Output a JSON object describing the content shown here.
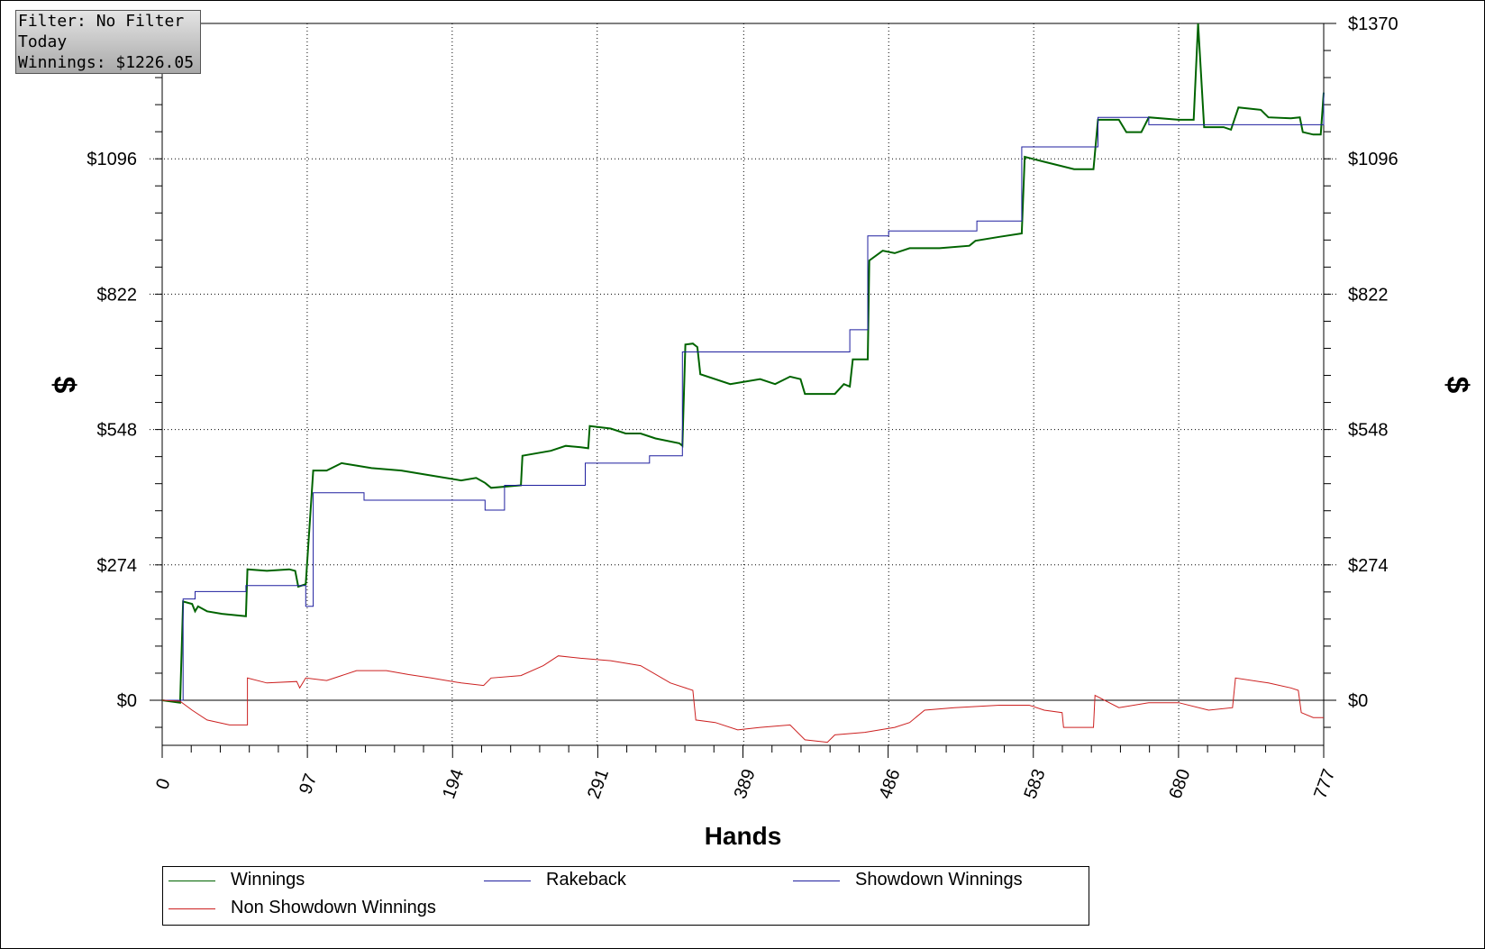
{
  "info_box": {
    "filter": "Filter: No Filter",
    "period": "Today",
    "winnings": "Winnings: $1226.05"
  },
  "colors": {
    "winnings": "#006400",
    "rakeback": "#0000cd",
    "showdown": "#0000cd",
    "non_showdown": "#cc2020",
    "grid": "#000000",
    "zero_line": "#000000"
  },
  "legend": [
    {
      "label": "Winnings",
      "color": "#006400"
    },
    {
      "label": "Rakeback",
      "color": "#1f1f9f"
    },
    {
      "label": "Showdown Winnings",
      "color": "#1f1f9f"
    },
    {
      "label": "Non Showdown Winnings",
      "color": "#cc2020"
    }
  ],
  "chart_data": {
    "type": "line",
    "title": "",
    "xlabel": "Hands",
    "ylabel_left": "$",
    "ylabel_right": "$",
    "xlim": [
      0,
      777
    ],
    "ylim": [
      -90,
      1370
    ],
    "x_ticks": [
      0,
      97,
      194,
      291,
      389,
      486,
      583,
      680,
      777
    ],
    "x_tick_labels": [
      "0",
      "97",
      "194",
      "291",
      "389",
      "486",
      "583",
      "680",
      "777"
    ],
    "y_ticks": [
      0,
      274,
      548,
      822,
      1096,
      1370
    ],
    "y_tick_labels_left": [
      "$0",
      "$274",
      "$548",
      "$822",
      "$1096",
      ""
    ],
    "y_tick_labels_right": [
      "$0",
      "$274",
      "$548",
      "$822",
      "$1096",
      "$1370"
    ],
    "grid": true,
    "legend_position": "bottom",
    "series": [
      {
        "name": "Winnings",
        "color": "#006400",
        "points": [
          [
            0,
            0
          ],
          [
            12,
            -5
          ],
          [
            14,
            200
          ],
          [
            20,
            195
          ],
          [
            22,
            180
          ],
          [
            24,
            190
          ],
          [
            30,
            180
          ],
          [
            40,
            175
          ],
          [
            56,
            170
          ],
          [
            57,
            265
          ],
          [
            70,
            262
          ],
          [
            85,
            265
          ],
          [
            89,
            262
          ],
          [
            91,
            230
          ],
          [
            96,
            235
          ],
          [
            101,
            465
          ],
          [
            110,
            465
          ],
          [
            120,
            480
          ],
          [
            130,
            475
          ],
          [
            140,
            470
          ],
          [
            160,
            465
          ],
          [
            180,
            455
          ],
          [
            200,
            445
          ],
          [
            210,
            450
          ],
          [
            216,
            440
          ],
          [
            220,
            430
          ],
          [
            240,
            435
          ],
          [
            241,
            495
          ],
          [
            260,
            505
          ],
          [
            270,
            515
          ],
          [
            280,
            512
          ],
          [
            285,
            510
          ],
          [
            286,
            555
          ],
          [
            300,
            550
          ],
          [
            310,
            540
          ],
          [
            320,
            540
          ],
          [
            330,
            530
          ],
          [
            346,
            520
          ],
          [
            348,
            515
          ],
          [
            350,
            720
          ],
          [
            355,
            722
          ],
          [
            358,
            715
          ],
          [
            360,
            660
          ],
          [
            380,
            640
          ],
          [
            400,
            650
          ],
          [
            410,
            640
          ],
          [
            420,
            655
          ],
          [
            427,
            650
          ],
          [
            430,
            620
          ],
          [
            450,
            620
          ],
          [
            456,
            640
          ],
          [
            460,
            635
          ],
          [
            462,
            690
          ],
          [
            472,
            690
          ],
          [
            473,
            890
          ],
          [
            482,
            910
          ],
          [
            490,
            905
          ],
          [
            500,
            915
          ],
          [
            520,
            915
          ],
          [
            540,
            920
          ],
          [
            544,
            930
          ],
          [
            560,
            938
          ],
          [
            575,
            945
          ],
          [
            577,
            1100
          ],
          [
            590,
            1090
          ],
          [
            610,
            1075
          ],
          [
            623,
            1075
          ],
          [
            626,
            1175
          ],
          [
            640,
            1175
          ],
          [
            645,
            1150
          ],
          [
            655,
            1150
          ],
          [
            660,
            1180
          ],
          [
            680,
            1175
          ],
          [
            690,
            1175
          ],
          [
            693,
            1380
          ],
          [
            697,
            1160
          ],
          [
            710,
            1160
          ],
          [
            715,
            1155
          ],
          [
            720,
            1200
          ],
          [
            735,
            1195
          ],
          [
            740,
            1180
          ],
          [
            755,
            1178
          ],
          [
            761,
            1180
          ],
          [
            763,
            1150
          ],
          [
            770,
            1145
          ],
          [
            775,
            1145
          ],
          [
            777,
            1230
          ]
        ]
      },
      {
        "name": "Rakeback",
        "color": "#1f1f9f",
        "points": [
          [
            0,
            0
          ],
          [
            14,
            0
          ],
          [
            14,
            205
          ],
          [
            22,
            205
          ],
          [
            22,
            220
          ],
          [
            56,
            220
          ],
          [
            56,
            232
          ],
          [
            96,
            232
          ],
          [
            96,
            190
          ],
          [
            101,
            190
          ],
          [
            101,
            420
          ],
          [
            135,
            420
          ],
          [
            135,
            405
          ],
          [
            216,
            405
          ],
          [
            216,
            385
          ],
          [
            229,
            385
          ],
          [
            229,
            435
          ],
          [
            283,
            435
          ],
          [
            283,
            480
          ],
          [
            326,
            480
          ],
          [
            326,
            495
          ],
          [
            348,
            495
          ],
          [
            348,
            705
          ],
          [
            460,
            705
          ],
          [
            460,
            750
          ],
          [
            472,
            750
          ],
          [
            472,
            940
          ],
          [
            486,
            940
          ],
          [
            486,
            950
          ],
          [
            545,
            950
          ],
          [
            545,
            970
          ],
          [
            575,
            970
          ],
          [
            575,
            1120
          ],
          [
            626,
            1120
          ],
          [
            626,
            1180
          ],
          [
            660,
            1180
          ],
          [
            660,
            1165
          ],
          [
            690,
            1165
          ],
          [
            690,
            1165
          ],
          [
            696,
            1165
          ],
          [
            696,
            1165
          ],
          [
            777,
            1165
          ],
          [
            777,
            1230
          ]
        ]
      },
      {
        "name": "Non Showdown Winnings",
        "color": "#cc2020",
        "points": [
          [
            0,
            0
          ],
          [
            12,
            -2
          ],
          [
            20,
            -20
          ],
          [
            30,
            -40
          ],
          [
            45,
            -50
          ],
          [
            57,
            -50
          ],
          [
            57,
            45
          ],
          [
            70,
            35
          ],
          [
            90,
            38
          ],
          [
            92,
            25
          ],
          [
            96,
            45
          ],
          [
            110,
            40
          ],
          [
            120,
            50
          ],
          [
            130,
            60
          ],
          [
            150,
            60
          ],
          [
            165,
            52
          ],
          [
            180,
            45
          ],
          [
            200,
            35
          ],
          [
            215,
            30
          ],
          [
            220,
            45
          ],
          [
            240,
            50
          ],
          [
            255,
            70
          ],
          [
            265,
            90
          ],
          [
            280,
            85
          ],
          [
            300,
            80
          ],
          [
            320,
            70
          ],
          [
            340,
            35
          ],
          [
            355,
            20
          ],
          [
            357,
            -40
          ],
          [
            370,
            -45
          ],
          [
            385,
            -60
          ],
          [
            400,
            -55
          ],
          [
            420,
            -50
          ],
          [
            430,
            -80
          ],
          [
            445,
            -85
          ],
          [
            450,
            -70
          ],
          [
            470,
            -65
          ],
          [
            490,
            -55
          ],
          [
            500,
            -45
          ],
          [
            510,
            -20
          ],
          [
            530,
            -15
          ],
          [
            560,
            -10
          ],
          [
            580,
            -10
          ],
          [
            590,
            -20
          ],
          [
            602,
            -25
          ],
          [
            603,
            -55
          ],
          [
            623,
            -55
          ],
          [
            624,
            10
          ],
          [
            640,
            -15
          ],
          [
            660,
            -5
          ],
          [
            680,
            -5
          ],
          [
            700,
            -20
          ],
          [
            716,
            -15
          ],
          [
            718,
            45
          ],
          [
            740,
            35
          ],
          [
            755,
            25
          ],
          [
            760,
            20
          ],
          [
            762,
            -25
          ],
          [
            770,
            -35
          ],
          [
            777,
            -35
          ]
        ]
      }
    ]
  }
}
